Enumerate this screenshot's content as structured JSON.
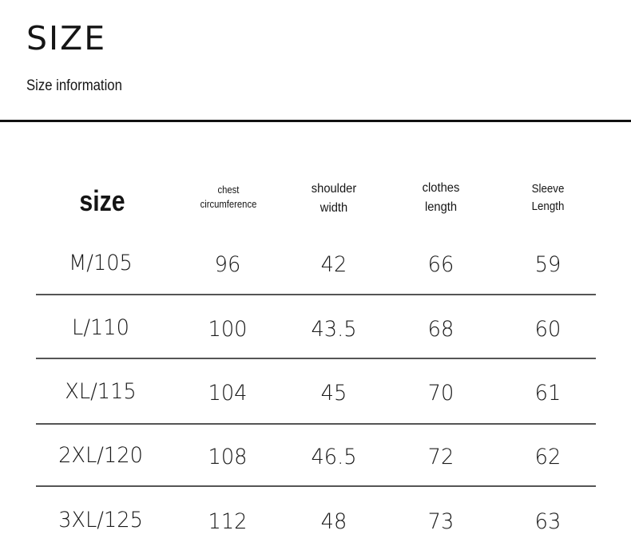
{
  "header": {
    "title": "SIZE",
    "subtitle": "Size information"
  },
  "table": {
    "columns": [
      {
        "lines": [
          "size"
        ]
      },
      {
        "lines": [
          "chest",
          "circumference"
        ]
      },
      {
        "lines": [
          "shoulder",
          "width"
        ]
      },
      {
        "lines": [
          "clothes",
          "length"
        ]
      },
      {
        "lines": [
          "Sleeve",
          "Length"
        ]
      }
    ],
    "rows": [
      [
        "M/105",
        "96",
        "42",
        "66",
        "59"
      ],
      [
        "L/110",
        "100",
        "43.5",
        "68",
        "60"
      ],
      [
        "XL/115",
        "104",
        "45",
        "70",
        "61"
      ],
      [
        "2XL/120",
        "108",
        "46.5",
        "72",
        "62"
      ],
      [
        "3XL/125",
        "112",
        "48",
        "73",
        "63"
      ]
    ]
  }
}
